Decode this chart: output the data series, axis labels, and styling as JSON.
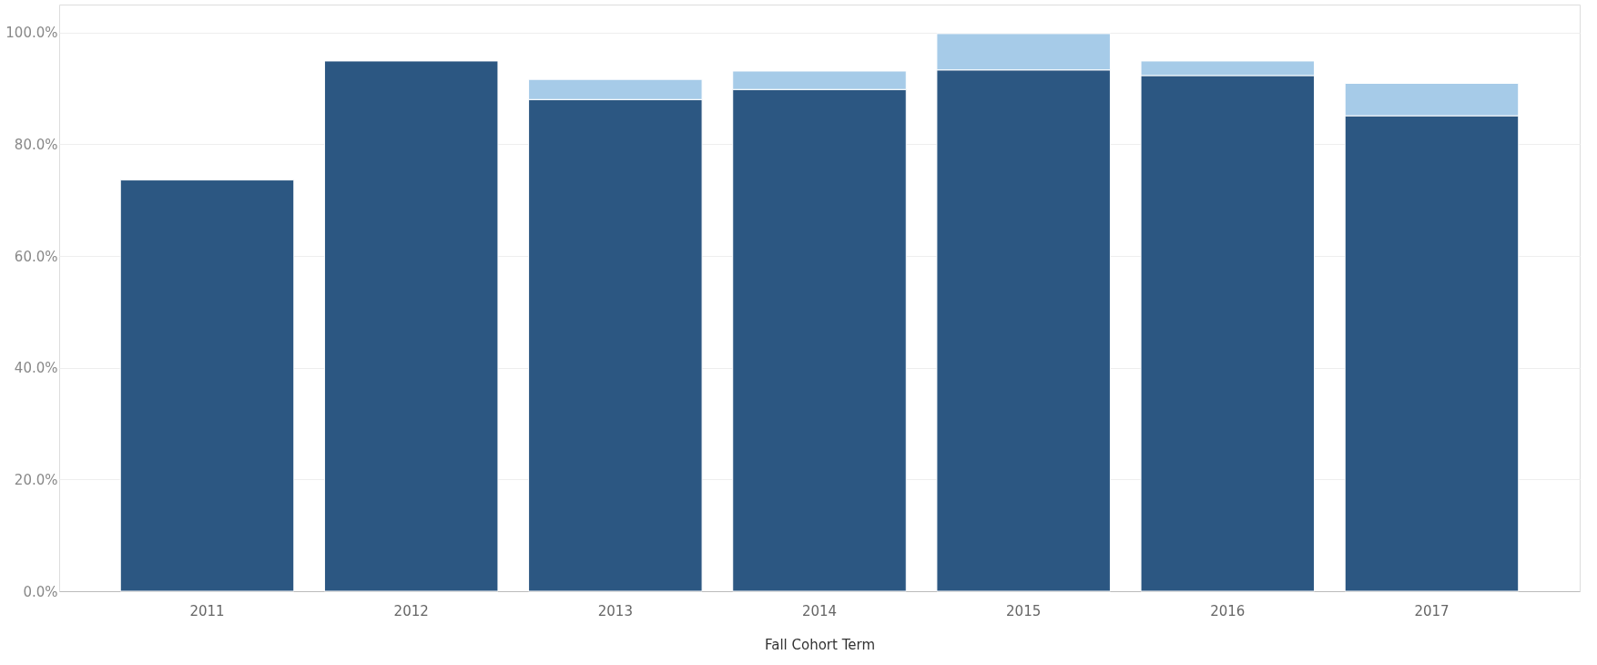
{
  "chart_data": {
    "type": "bar",
    "stacked": true,
    "xlabel": "Fall Cohort Term",
    "categories": [
      "2011",
      "2012",
      "2013",
      "2014",
      "2015",
      "2016",
      "2017"
    ],
    "series": [
      {
        "color": "#2c5782",
        "values": [
          73.6,
          94.9,
          88.0,
          89.8,
          93.3,
          92.3,
          85.1
        ]
      },
      {
        "color": "#a6cbe8",
        "values": [
          null,
          null,
          3.6,
          3.3,
          6.5,
          2.6,
          5.8
        ]
      }
    ],
    "ylim": [
      0,
      105
    ],
    "yticks": [
      {
        "value": 0,
        "label": "0.0%"
      },
      {
        "value": 20,
        "label": "20.0%"
      },
      {
        "value": 40,
        "label": "40.0%"
      },
      {
        "value": 60,
        "label": "60.0%"
      },
      {
        "value": 80,
        "label": "80.0%"
      },
      {
        "value": 100,
        "label": "100.0%"
      }
    ],
    "grid": "y",
    "legend": false
  }
}
